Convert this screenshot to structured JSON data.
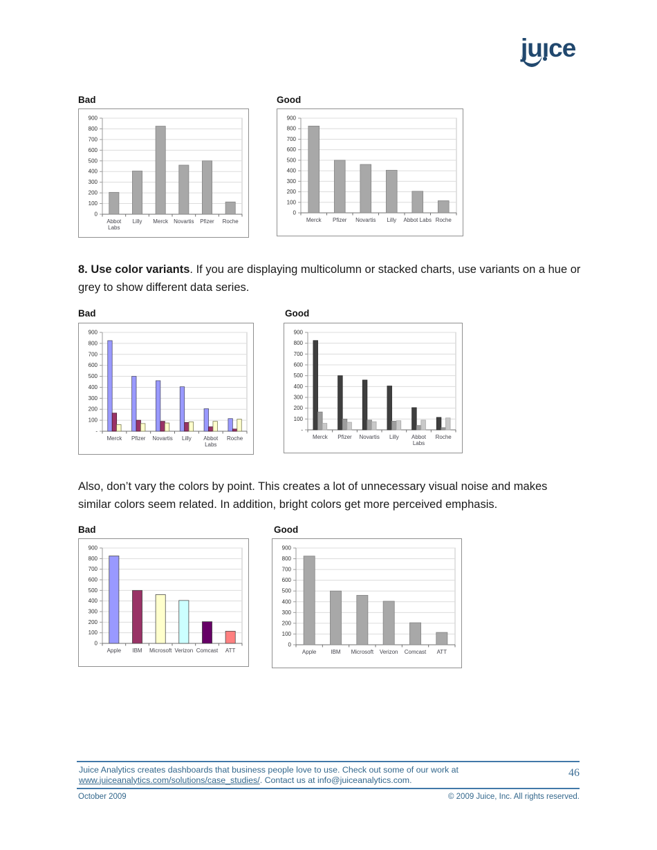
{
  "logo": {
    "ju": "ju",
    "i_stem": "ı",
    "ce": "ce",
    "color": "#21486E"
  },
  "content": {
    "para1_bold": "8. Use color variants",
    "para1_rest": ". If you are displaying multicolumn or stacked charts, use variants on a hue or grey to show different data series.",
    "para2": "Also, don’t vary the colors by point. This creates a lot of unnecessary visual noise and makes similar colors seem related. In addition, bright colors get more perceived emphasis."
  },
  "chart_data": [
    {
      "label": "Bad",
      "type": "bar",
      "title": "",
      "categories": [
        "Abbot\nLabs",
        "Lilly",
        "Merck",
        "Novartis",
        "Pfizer",
        "Roche"
      ],
      "series": [
        {
          "name": "value",
          "color": "#A8A8A8",
          "border": "#838383",
          "values": [
            205,
            405,
            825,
            460,
            500,
            115
          ]
        }
      ],
      "ylim": [
        0,
        900
      ],
      "ytick_step": 100,
      "zero_label": "0",
      "grid": true,
      "legend": false
    },
    {
      "label": "Good",
      "type": "bar",
      "title": "",
      "categories": [
        "Merck",
        "Pfizer",
        "Novartis",
        "Lilly",
        "Abbot Labs",
        "Roche"
      ],
      "series": [
        {
          "name": "value",
          "color": "#A8A8A8",
          "border": "#838383",
          "values": [
            825,
            500,
            460,
            405,
            205,
            115
          ]
        }
      ],
      "ylim": [
        0,
        900
      ],
      "ytick_step": 100,
      "zero_label": "0",
      "grid": true,
      "legend": false
    },
    {
      "label": "Bad",
      "type": "bar",
      "title": "",
      "categories": [
        "Merck",
        "Pfizer",
        "Novartis",
        "Lilly",
        "Abbot\nLabs",
        "Roche"
      ],
      "series": [
        {
          "name": "series1",
          "color": "#9999FF",
          "border": "#50506E",
          "values": [
            825,
            500,
            460,
            405,
            205,
            115
          ]
        },
        {
          "name": "series2",
          "color": "#993366",
          "border": "#4D1A33",
          "values": [
            165,
            100,
            90,
            80,
            40,
            20
          ]
        },
        {
          "name": "series3",
          "color": "#FFFFCC",
          "border": "#7A7A52",
          "values": [
            60,
            70,
            75,
            85,
            90,
            110
          ]
        }
      ],
      "ylim": [
        0,
        900
      ],
      "ytick_step": 100,
      "zero_label": "-",
      "grid": true,
      "legend": false
    },
    {
      "label": "Good",
      "type": "bar",
      "title": "",
      "categories": [
        "Merck",
        "Pfizer",
        "Novartis",
        "Lilly",
        "Abbot\nLabs",
        "Roche"
      ],
      "series": [
        {
          "name": "series1",
          "color": "#3F3F3F",
          "border": "#2B2B2B",
          "values": [
            825,
            500,
            460,
            405,
            205,
            115
          ]
        },
        {
          "name": "series2",
          "color": "#9D9D9D",
          "border": "#7E7E7E",
          "values": [
            165,
            100,
            90,
            80,
            40,
            20
          ]
        },
        {
          "name": "series3",
          "color": "#C9C9C9",
          "border": "#A8A8A8",
          "values": [
            60,
            70,
            75,
            85,
            90,
            110
          ]
        }
      ],
      "ylim": [
        0,
        900
      ],
      "ytick_step": 100,
      "zero_label": "-",
      "grid": true,
      "legend": false
    },
    {
      "label": "Bad",
      "type": "bar",
      "title": "",
      "categories": [
        "Apple",
        "IBM",
        "Microsoft",
        "Verizon",
        "Comcast",
        "ATT"
      ],
      "series": [
        {
          "name": "value",
          "color": "#9999FF",
          "border": "#4A4A4A",
          "colors": [
            "#9999FF",
            "#993366",
            "#FFFFCC",
            "#CCFFFF",
            "#660066",
            "#FF8080"
          ],
          "values": [
            825,
            500,
            460,
            405,
            205,
            115
          ]
        }
      ],
      "ylim": [
        0,
        900
      ],
      "ytick_step": 100,
      "zero_label": "0",
      "grid": true,
      "legend": false
    },
    {
      "label": "Good",
      "type": "bar",
      "title": "",
      "categories": [
        "Apple",
        "IBM",
        "Microsoft",
        "Verizon",
        "Comcast",
        "ATT"
      ],
      "series": [
        {
          "name": "value",
          "color": "#A8A8A8",
          "border": "#838383",
          "values": [
            825,
            500,
            460,
            405,
            205,
            115
          ]
        }
      ],
      "ylim": [
        0,
        900
      ],
      "ytick_step": 100,
      "zero_label": "0",
      "grid": true,
      "legend": false
    }
  ],
  "footer": {
    "note_before_link": "Juice Analytics creates dashboards that business people love to use. Check out some of our work at ",
    "link_text": "www.juiceanalytics.com/solutions/case_studies/",
    "note_after_link": ". Contact us at info@juiceanalytics.com.",
    "page_number": "46",
    "date": "October 2009",
    "copyright": "© 2009 Juice, Inc. All rights reserved.",
    "rule_color": "#4178A8",
    "text_color": "#33678C"
  }
}
